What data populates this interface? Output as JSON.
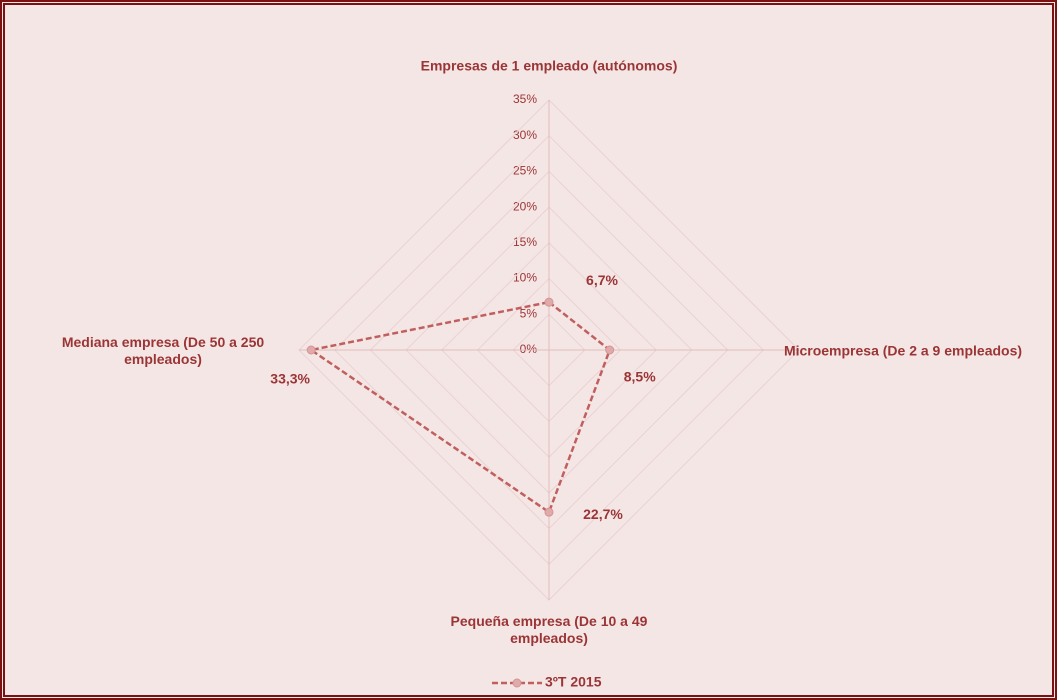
{
  "chart_data": {
    "type": "radar",
    "categories": [
      "Empresas de 1 empleado (autónomos)",
      "Microempresa (De 2 a 9 empleados)",
      "Pequeña empresa (De 10 a 49 empleados)",
      "Mediana empresa (De 50 a 250 empleados)"
    ],
    "series": [
      {
        "name": "3ºT 2015",
        "color": "#c0605e",
        "values": [
          6.7,
          8.5,
          22.7,
          33.3
        ],
        "value_labels": [
          "6,7%",
          "8,5%",
          "22,7%",
          "33,3%"
        ]
      }
    ],
    "ylim": [
      0,
      35
    ],
    "yticks": [
      {
        "value": 0,
        "label": "0%"
      },
      {
        "value": 5,
        "label": "5%"
      },
      {
        "value": 10,
        "label": "10%"
      },
      {
        "value": 15,
        "label": "15%"
      },
      {
        "value": 20,
        "label": "20%"
      },
      {
        "value": 25,
        "label": "25%"
      },
      {
        "value": 30,
        "label": "30%"
      },
      {
        "value": 35,
        "label": "35%"
      }
    ],
    "grid": true,
    "legend": "bottom"
  }
}
